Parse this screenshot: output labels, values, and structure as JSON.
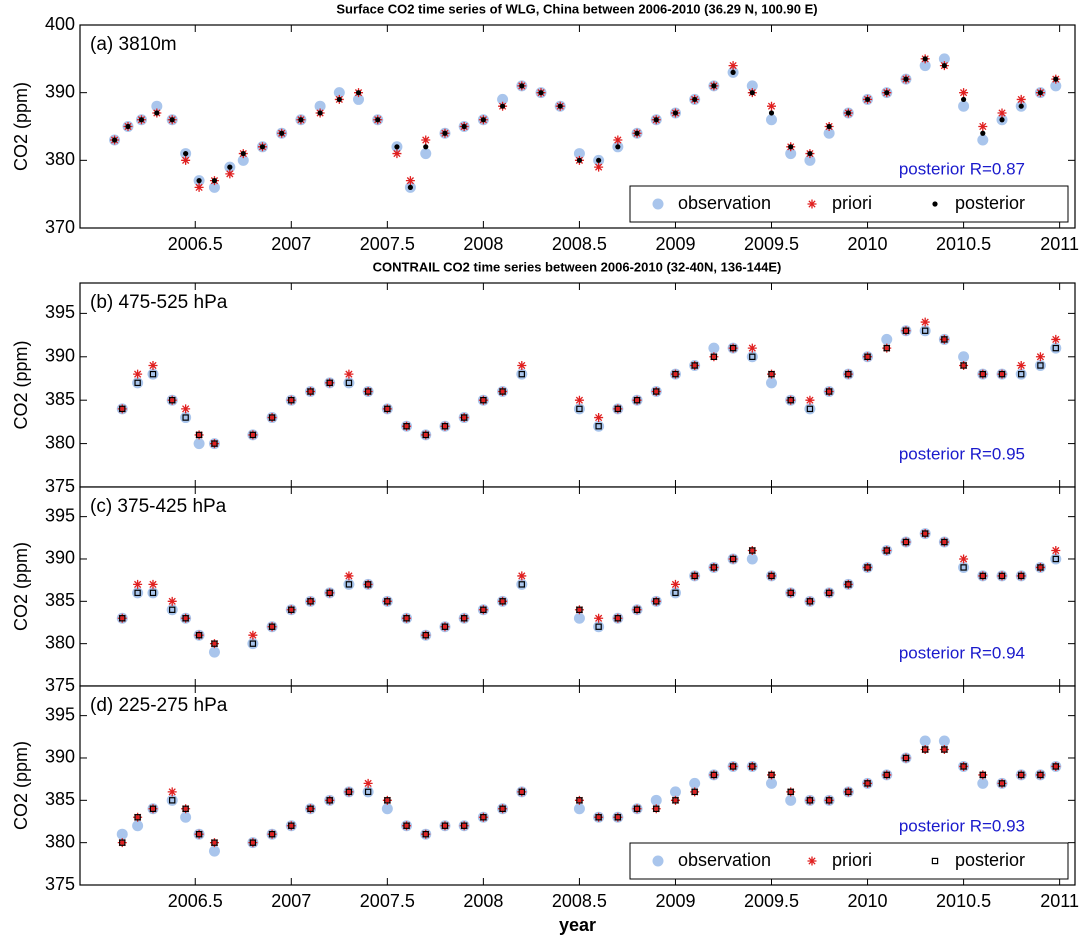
{
  "chart_data": [
    {
      "type": "scatter",
      "title": "Surface CO2 time series of WLG, China between 2006-2010 (36.29 N, 100.90 E)",
      "panel_label": "(a) 3810m",
      "annotation": "posterior R=0.87",
      "ylabel": "CO2 (ppm)",
      "xlim": [
        2005.9,
        2011.08
      ],
      "xticks": [
        2006.5,
        2007,
        2007.5,
        2008,
        2008.5,
        2009,
        2009.5,
        2010,
        2010.5,
        2011
      ],
      "xtick_labels": true,
      "ylim": [
        370,
        400
      ],
      "yticks": [
        370,
        380,
        390,
        400
      ],
      "legend": "lower right",
      "x": [
        2006.08,
        2006.15,
        2006.22,
        2006.3,
        2006.38,
        2006.45,
        2006.52,
        2006.6,
        2006.68,
        2006.75,
        2006.85,
        2006.95,
        2007.05,
        2007.15,
        2007.25,
        2007.35,
        2007.45,
        2007.55,
        2007.62,
        2007.7,
        2007.8,
        2007.9,
        2008.0,
        2008.1,
        2008.2,
        2008.3,
        2008.4,
        2008.5,
        2008.6,
        2008.7,
        2008.8,
        2008.9,
        2009.0,
        2009.1,
        2009.2,
        2009.3,
        2009.4,
        2009.5,
        2009.6,
        2009.7,
        2009.8,
        2009.9,
        2010.0,
        2010.1,
        2010.2,
        2010.3,
        2010.4,
        2010.5,
        2010.6,
        2010.7,
        2010.8,
        2010.9,
        2010.98
      ],
      "series": [
        {
          "name": "observation",
          "color": "#a9c5ec",
          "marker": "circle",
          "values": [
            383,
            385,
            386,
            388,
            386,
            381,
            377,
            376,
            379,
            380,
            382,
            384,
            386,
            388,
            390,
            389,
            386,
            382,
            376,
            381,
            384,
            385,
            386,
            389,
            391,
            390,
            388,
            381,
            380,
            382,
            384,
            386,
            387,
            389,
            391,
            393,
            391,
            386,
            381,
            380,
            384,
            387,
            389,
            390,
            392,
            394,
            395,
            388,
            383,
            386,
            388,
            390,
            391
          ]
        },
        {
          "name": "priori",
          "color": "#e02020",
          "marker": "star",
          "values": [
            383,
            385,
            386,
            387,
            386,
            380,
            376,
            377,
            378,
            381,
            382,
            384,
            386,
            387,
            389,
            390,
            386,
            381,
            377,
            383,
            384,
            385,
            386,
            388,
            391,
            390,
            388,
            380,
            379,
            383,
            384,
            386,
            387,
            389,
            391,
            394,
            390,
            388,
            382,
            381,
            385,
            387,
            389,
            390,
            392,
            395,
            394,
            390,
            385,
            387,
            389,
            390,
            392
          ]
        },
        {
          "name": "posterior",
          "color": "#000000",
          "marker": "dot",
          "values": [
            383,
            385,
            386,
            387,
            386,
            381,
            377,
            377,
            379,
            381,
            382,
            384,
            386,
            387,
            389,
            390,
            386,
            382,
            376,
            382,
            384,
            385,
            386,
            388,
            391,
            390,
            388,
            380,
            380,
            382,
            384,
            386,
            387,
            389,
            391,
            393,
            390,
            387,
            382,
            381,
            385,
            387,
            389,
            390,
            392,
            395,
            394,
            389,
            384,
            386,
            388,
            390,
            392
          ]
        }
      ]
    },
    {
      "type": "scatter",
      "title": "CONTRAIL CO2 time series between 2006-2010 (32-40N, 136-144E)",
      "panel_label": "(b) 475-525 hPa",
      "annotation": "posterior R=0.95",
      "ylabel": "CO2 (ppm)",
      "xlim": [
        2005.9,
        2011.08
      ],
      "xticks": [
        2006.5,
        2007,
        2007.5,
        2008,
        2008.5,
        2009,
        2009.5,
        2010,
        2010.5,
        2011
      ],
      "xtick_labels": false,
      "ylim": [
        375,
        398.5
      ],
      "yticks": [
        375,
        380,
        385,
        390,
        395
      ],
      "x": [
        2006.12,
        2006.2,
        2006.28,
        2006.38,
        2006.45,
        2006.52,
        2006.6,
        2006.8,
        2006.9,
        2007.0,
        2007.1,
        2007.2,
        2007.3,
        2007.4,
        2007.5,
        2007.6,
        2007.7,
        2007.8,
        2007.9,
        2008.0,
        2008.1,
        2008.2,
        2008.5,
        2008.6,
        2008.7,
        2008.8,
        2008.9,
        2009.0,
        2009.1,
        2009.2,
        2009.3,
        2009.4,
        2009.5,
        2009.6,
        2009.7,
        2009.8,
        2009.9,
        2010.0,
        2010.1,
        2010.2,
        2010.3,
        2010.4,
        2010.5,
        2010.6,
        2010.7,
        2010.8,
        2010.9,
        2010.98
      ],
      "series": [
        {
          "name": "observation",
          "color": "#a9c5ec",
          "marker": "circle",
          "values": [
            384,
            387,
            388,
            385,
            383,
            380,
            380,
            381,
            383,
            385,
            386,
            387,
            387,
            386,
            384,
            382,
            381,
            382,
            383,
            385,
            386,
            388,
            384,
            382,
            384,
            385,
            386,
            388,
            389,
            391,
            391,
            390,
            387,
            385,
            384,
            386,
            388,
            390,
            392,
            393,
            393,
            392,
            390,
            388,
            388,
            388,
            389,
            391
          ]
        },
        {
          "name": "priori",
          "color": "#e02020",
          "marker": "star",
          "values": [
            384,
            388,
            389,
            385,
            384,
            381,
            380,
            381,
            383,
            385,
            386,
            387,
            388,
            386,
            384,
            382,
            381,
            382,
            383,
            385,
            386,
            389,
            385,
            383,
            384,
            385,
            386,
            388,
            389,
            390,
            391,
            391,
            388,
            385,
            385,
            386,
            388,
            390,
            391,
            393,
            394,
            392,
            389,
            388,
            388,
            389,
            390,
            392
          ]
        },
        {
          "name": "posterior",
          "color": "#000000",
          "marker": "square",
          "values": [
            384,
            387,
            388,
            385,
            383,
            381,
            380,
            381,
            383,
            385,
            386,
            387,
            387,
            386,
            384,
            382,
            381,
            382,
            383,
            385,
            386,
            388,
            384,
            382,
            384,
            385,
            386,
            388,
            389,
            390,
            391,
            390,
            388,
            385,
            384,
            386,
            388,
            390,
            391,
            393,
            393,
            392,
            389,
            388,
            388,
            388,
            389,
            391
          ]
        }
      ]
    },
    {
      "type": "scatter",
      "panel_label": "(c) 375-425 hPa",
      "annotation": "posterior R=0.94",
      "ylabel": "CO2 (ppm)",
      "xlim": [
        2005.9,
        2011.08
      ],
      "xticks": [
        2006.5,
        2007,
        2007.5,
        2008,
        2008.5,
        2009,
        2009.5,
        2010,
        2010.5,
        2011
      ],
      "xtick_labels": false,
      "ylim": [
        375,
        398.5
      ],
      "yticks": [
        375,
        380,
        385,
        390,
        395
      ],
      "x": [
        2006.12,
        2006.2,
        2006.28,
        2006.38,
        2006.45,
        2006.52,
        2006.6,
        2006.8,
        2006.9,
        2007.0,
        2007.1,
        2007.2,
        2007.3,
        2007.4,
        2007.5,
        2007.6,
        2007.7,
        2007.8,
        2007.9,
        2008.0,
        2008.1,
        2008.2,
        2008.5,
        2008.6,
        2008.7,
        2008.8,
        2008.9,
        2009.0,
        2009.1,
        2009.2,
        2009.3,
        2009.4,
        2009.5,
        2009.6,
        2009.7,
        2009.8,
        2009.9,
        2010.0,
        2010.1,
        2010.2,
        2010.3,
        2010.4,
        2010.5,
        2010.6,
        2010.7,
        2010.8,
        2010.9,
        2010.98
      ],
      "series": [
        {
          "name": "observation",
          "color": "#a9c5ec",
          "marker": "circle",
          "values": [
            383,
            386,
            386,
            384,
            383,
            381,
            379,
            380,
            382,
            384,
            385,
            386,
            387,
            387,
            385,
            383,
            381,
            382,
            383,
            384,
            385,
            387,
            383,
            382,
            383,
            384,
            385,
            386,
            388,
            389,
            390,
            390,
            388,
            386,
            385,
            386,
            387,
            389,
            391,
            392,
            393,
            392,
            389,
            388,
            388,
            388,
            389,
            390
          ]
        },
        {
          "name": "priori",
          "color": "#e02020",
          "marker": "star",
          "values": [
            383,
            387,
            387,
            385,
            383,
            381,
            380,
            381,
            382,
            384,
            385,
            386,
            388,
            387,
            385,
            383,
            381,
            382,
            383,
            384,
            385,
            388,
            384,
            383,
            383,
            384,
            385,
            387,
            388,
            389,
            390,
            391,
            388,
            386,
            385,
            386,
            387,
            389,
            391,
            392,
            393,
            392,
            390,
            388,
            388,
            388,
            389,
            391
          ]
        },
        {
          "name": "posterior",
          "color": "#000000",
          "marker": "square",
          "values": [
            383,
            386,
            386,
            384,
            383,
            381,
            380,
            380,
            382,
            384,
            385,
            386,
            387,
            387,
            385,
            383,
            381,
            382,
            383,
            384,
            385,
            387,
            384,
            382,
            383,
            384,
            385,
            386,
            388,
            389,
            390,
            391,
            388,
            386,
            385,
            386,
            387,
            389,
            391,
            392,
            393,
            392,
            389,
            388,
            388,
            388,
            389,
            390
          ]
        }
      ]
    },
    {
      "type": "scatter",
      "panel_label": "(d) 225-275 hPa",
      "annotation": "posterior R=0.93",
      "ylabel": "CO2 (ppm)",
      "xlabel": "year",
      "xlim": [
        2005.9,
        2011.08
      ],
      "xticks": [
        2006.5,
        2007,
        2007.5,
        2008,
        2008.5,
        2009,
        2009.5,
        2010,
        2010.5,
        2011
      ],
      "xtick_labels": true,
      "ylim": [
        375,
        398.5
      ],
      "yticks": [
        375,
        380,
        385,
        390,
        395
      ],
      "legend": "lower right",
      "x": [
        2006.12,
        2006.2,
        2006.28,
        2006.38,
        2006.45,
        2006.52,
        2006.6,
        2006.8,
        2006.9,
        2007.0,
        2007.1,
        2007.2,
        2007.3,
        2007.4,
        2007.5,
        2007.6,
        2007.7,
        2007.8,
        2007.9,
        2008.0,
        2008.1,
        2008.2,
        2008.5,
        2008.6,
        2008.7,
        2008.8,
        2008.9,
        2009.0,
        2009.1,
        2009.2,
        2009.3,
        2009.4,
        2009.5,
        2009.6,
        2009.7,
        2009.8,
        2009.9,
        2010.0,
        2010.1,
        2010.2,
        2010.3,
        2010.4,
        2010.5,
        2010.6,
        2010.7,
        2010.8,
        2010.9,
        2010.98
      ],
      "series": [
        {
          "name": "observation",
          "color": "#a9c5ec",
          "marker": "circle",
          "values": [
            381,
            382,
            384,
            385,
            383,
            381,
            379,
            380,
            381,
            382,
            384,
            385,
            386,
            386,
            384,
            382,
            381,
            382,
            382,
            383,
            384,
            386,
            384,
            383,
            383,
            384,
            385,
            386,
            387,
            388,
            389,
            389,
            387,
            385,
            385,
            385,
            386,
            387,
            388,
            390,
            392,
            392,
            389,
            387,
            387,
            388,
            388,
            389
          ]
        },
        {
          "name": "priori",
          "color": "#e02020",
          "marker": "star",
          "values": [
            380,
            383,
            384,
            386,
            384,
            381,
            380,
            380,
            381,
            382,
            384,
            385,
            386,
            387,
            385,
            382,
            381,
            382,
            382,
            383,
            384,
            386,
            385,
            383,
            383,
            384,
            384,
            385,
            386,
            388,
            389,
            389,
            388,
            386,
            385,
            385,
            386,
            387,
            388,
            390,
            391,
            391,
            389,
            388,
            387,
            388,
            388,
            389
          ]
        },
        {
          "name": "posterior",
          "color": "#000000",
          "marker": "square",
          "values": [
            380,
            383,
            384,
            385,
            384,
            381,
            380,
            380,
            381,
            382,
            384,
            385,
            386,
            386,
            385,
            382,
            381,
            382,
            382,
            383,
            384,
            386,
            385,
            383,
            383,
            384,
            384,
            385,
            386,
            388,
            389,
            389,
            388,
            386,
            385,
            385,
            386,
            387,
            388,
            390,
            391,
            391,
            389,
            388,
            387,
            388,
            388,
            389
          ]
        }
      ]
    }
  ]
}
